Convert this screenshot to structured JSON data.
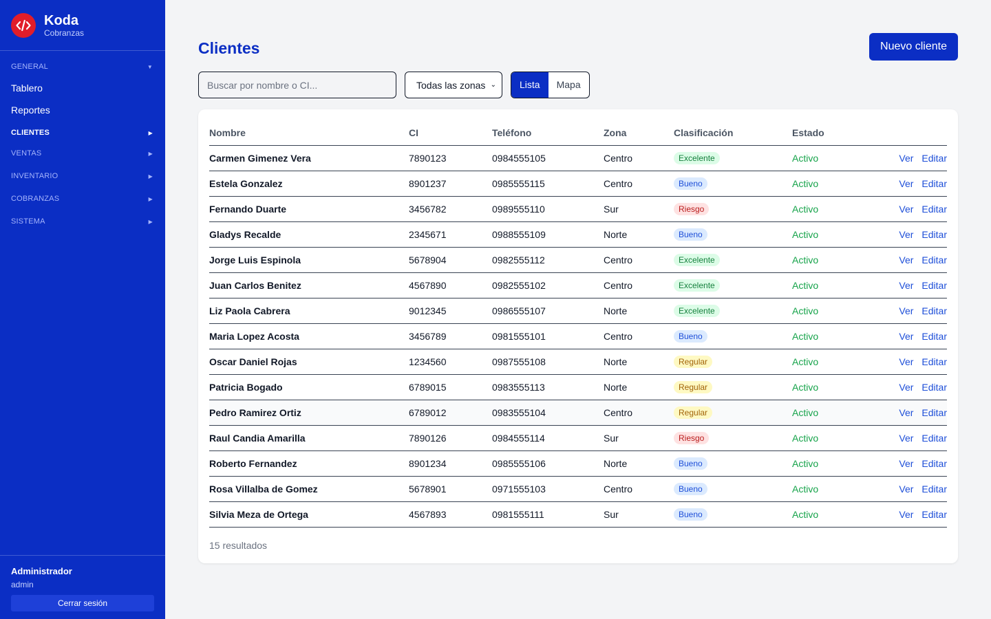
{
  "brand": {
    "title": "Koda",
    "subtitle": "Cobranzas"
  },
  "sidebar": {
    "sections": [
      {
        "label": "GENERAL",
        "items": [
          "Tablero",
          "Reportes"
        ]
      },
      {
        "label": "CLIENTES"
      },
      {
        "label": "VENTAS"
      },
      {
        "label": "INVENTARIO"
      },
      {
        "label": "COBRANZAS"
      },
      {
        "label": "SISTEMA"
      }
    ],
    "active_section": "CLIENTES"
  },
  "user": {
    "name": "Administrador",
    "login": "admin",
    "logout_label": "Cerrar sesión"
  },
  "page": {
    "title": "Clientes",
    "new_button": "Nuevo cliente",
    "search_placeholder": "Buscar por nombre o CI...",
    "search_value": "",
    "zone_select": "Todas las zonas",
    "view_toggle": [
      "Lista",
      "Mapa"
    ],
    "view_selected": "Lista"
  },
  "table": {
    "columns": [
      "Nombre",
      "CI",
      "Teléfono",
      "Zona",
      "Clasificación",
      "Estado"
    ],
    "actions": [
      "Ver",
      "Editar"
    ],
    "rows": [
      {
        "nombre": "Carmen Gimenez Vera",
        "ci": "7890123",
        "telefono": "0984555105",
        "zona": "Centro",
        "clasificacion": "Excelente",
        "estado": "Activo"
      },
      {
        "nombre": "Estela Gonzalez",
        "ci": "8901237",
        "telefono": "0985555115",
        "zona": "Centro",
        "clasificacion": "Bueno",
        "estado": "Activo"
      },
      {
        "nombre": "Fernando Duarte",
        "ci": "3456782",
        "telefono": "0989555110",
        "zona": "Sur",
        "clasificacion": "Riesgo",
        "estado": "Activo"
      },
      {
        "nombre": "Gladys Recalde",
        "ci": "2345671",
        "telefono": "0988555109",
        "zona": "Norte",
        "clasificacion": "Bueno",
        "estado": "Activo"
      },
      {
        "nombre": "Jorge Luis Espinola",
        "ci": "5678904",
        "telefono": "0982555112",
        "zona": "Centro",
        "clasificacion": "Excelente",
        "estado": "Activo"
      },
      {
        "nombre": "Juan Carlos Benitez",
        "ci": "4567890",
        "telefono": "0982555102",
        "zona": "Centro",
        "clasificacion": "Excelente",
        "estado": "Activo"
      },
      {
        "nombre": "Liz Paola Cabrera",
        "ci": "9012345",
        "telefono": "0986555107",
        "zona": "Norte",
        "clasificacion": "Excelente",
        "estado": "Activo"
      },
      {
        "nombre": "Maria Lopez Acosta",
        "ci": "3456789",
        "telefono": "0981555101",
        "zona": "Centro",
        "clasificacion": "Bueno",
        "estado": "Activo"
      },
      {
        "nombre": "Oscar Daniel Rojas",
        "ci": "1234560",
        "telefono": "0987555108",
        "zona": "Norte",
        "clasificacion": "Regular",
        "estado": "Activo"
      },
      {
        "nombre": "Patricia Bogado",
        "ci": "6789015",
        "telefono": "0983555113",
        "zona": "Norte",
        "clasificacion": "Regular",
        "estado": "Activo"
      },
      {
        "nombre": "Pedro Ramirez Ortiz",
        "ci": "6789012",
        "telefono": "0983555104",
        "zona": "Centro",
        "clasificacion": "Regular",
        "estado": "Activo"
      },
      {
        "nombre": "Raul Candia Amarilla",
        "ci": "7890126",
        "telefono": "0984555114",
        "zona": "Sur",
        "clasificacion": "Riesgo",
        "estado": "Activo"
      },
      {
        "nombre": "Roberto Fernandez",
        "ci": "8901234",
        "telefono": "0985555106",
        "zona": "Norte",
        "clasificacion": "Bueno",
        "estado": "Activo"
      },
      {
        "nombre": "Rosa Villalba de Gomez",
        "ci": "5678901",
        "telefono": "0971555103",
        "zona": "Centro",
        "clasificacion": "Bueno",
        "estado": "Activo"
      },
      {
        "nombre": "Silvia Meza de Ortega",
        "ci": "4567893",
        "telefono": "0981555111",
        "zona": "Sur",
        "clasificacion": "Bueno",
        "estado": "Activo"
      }
    ],
    "result_count": "15 resultados"
  },
  "colors": {
    "primary": "#0b2ec4",
    "logo": "#e11d2a",
    "active_status": "#16a34a"
  },
  "icons": {
    "logo": "code-icon",
    "section_chevron": "chevron-icon",
    "select_chevron": "chevron-down-icon"
  }
}
